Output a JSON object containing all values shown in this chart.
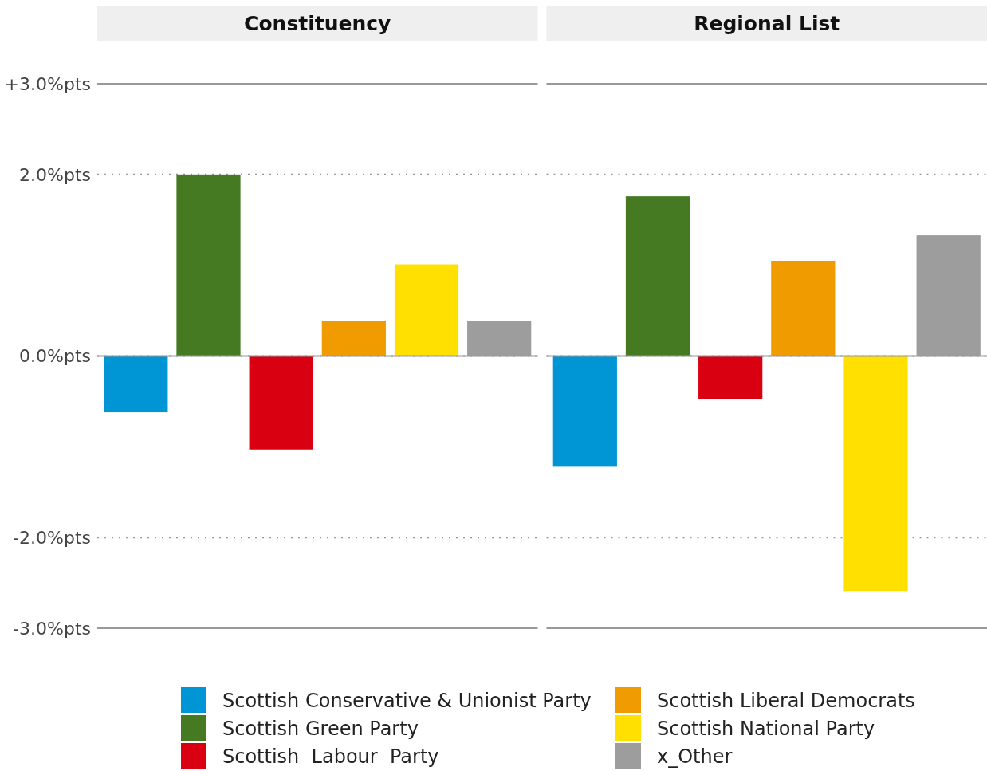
{
  "chart_data": {
    "type": "bar",
    "categories": [
      "Constituency",
      "Regional List"
    ],
    "ylim": [
      -3,
      3
    ],
    "yticks": [
      {
        "value": -3,
        "label": "-3.0%pts"
      },
      {
        "value": -2,
        "label": "-2.0%pts"
      },
      {
        "value": 0,
        "label": "0.0%pts"
      },
      {
        "value": 2,
        "label": "2.0%pts"
      },
      {
        "value": 3,
        "label": "+3.0%pts"
      }
    ],
    "grid": "y",
    "legend": "bottom",
    "series": [
      {
        "name": "Scottish Conservative & Unionist Party",
        "color": "#0096d6",
        "values": [
          -0.62,
          -1.22
        ]
      },
      {
        "name": "Scottish Green Party",
        "color": "#467a22",
        "values": [
          2.0,
          1.76
        ]
      },
      {
        "name": "Scottish  Labour  Party",
        "color": "#d90012",
        "values": [
          -1.03,
          -0.47
        ]
      },
      {
        "name": "Scottish Liberal Democrats",
        "color": "#f09c00",
        "values": [
          0.39,
          1.05
        ]
      },
      {
        "name": "Scottish National Party",
        "color": "#ffe000",
        "values": [
          1.01,
          -2.59
        ]
      },
      {
        "name": "x_Other",
        "color": "#9d9d9d",
        "values": [
          0.39,
          1.33
        ]
      }
    ]
  }
}
